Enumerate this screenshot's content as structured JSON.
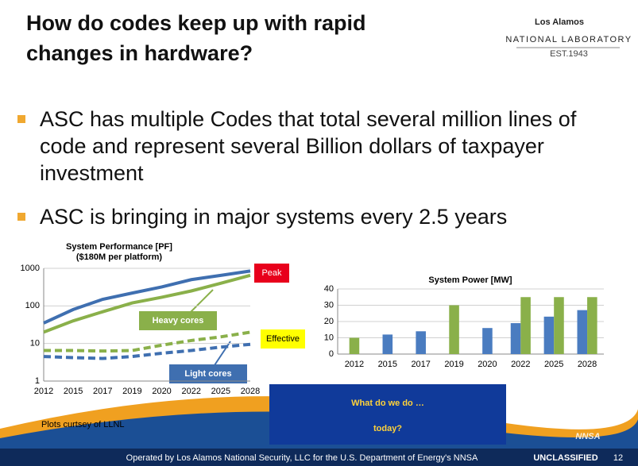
{
  "header": {
    "title": [
      "How do codes keep up with rapid",
      "changes in hardware?"
    ],
    "logo": {
      "name": "Los Alamos",
      "sub": "NATIONAL LABORATORY",
      "est": "EST.1943"
    }
  },
  "bullets": [
    "ASC has multiple Codes that total several million lines of code and represent several Billion dollars of taxpayer investment",
    "ASC is bringing in major systems every 2.5 years"
  ],
  "credit": "Plots curtsey of LLNL",
  "callout": [
    "What do we do …",
    "today?"
  ],
  "footer": {
    "operator": "Operated by Los Alamos National Security, LLC for the U.S. Department of Energy's NNSA",
    "agency": "NNSA",
    "classification": "UNCLASSIFIED",
    "page": "12"
  },
  "chart_data": [
    {
      "type": "line",
      "title": "System Performance [PF]",
      "subtitle": "($180M per platform)",
      "categories": [
        "2012",
        "2015",
        "2017",
        "2019",
        "2020",
        "2022",
        "2025",
        "2028"
      ],
      "ylog": true,
      "ylim": [
        1,
        1000
      ],
      "yticks": [
        1,
        10,
        100,
        1000
      ],
      "grid": true,
      "series": [
        {
          "color": "#3f6fb0",
          "dash": false,
          "values": [
            35,
            80,
            150,
            220,
            320,
            500,
            650,
            850
          ]
        },
        {
          "color": "#8ab04a",
          "dash": false,
          "values": [
            20,
            40,
            70,
            120,
            170,
            250,
            400,
            650
          ]
        },
        {
          "color": "#8ab04a",
          "dash": true,
          "values": [
            6.5,
            6.5,
            6.3,
            6.5,
            9,
            12,
            15,
            20
          ]
        },
        {
          "color": "#3f6fb0",
          "dash": true,
          "values": [
            4.5,
            4.2,
            4,
            4.5,
            5.5,
            6.5,
            8,
            9.5
          ]
        }
      ],
      "annotations": [
        "Peak",
        "Effective",
        "Heavy cores",
        "Light cores"
      ]
    },
    {
      "type": "bar",
      "title": "System Power [MW]",
      "categories": [
        "2012",
        "2015",
        "2017",
        "2019",
        "2020",
        "2022",
        "2025",
        "2028"
      ],
      "ylim": [
        0,
        40
      ],
      "yticks": [
        0,
        10,
        20,
        30,
        40
      ],
      "grid": true,
      "series": [
        {
          "color": "#4a7cc0",
          "values": [
            null,
            12,
            14,
            null,
            16,
            19,
            23,
            27
          ]
        },
        {
          "color": "#8ab04a",
          "values": [
            10,
            null,
            null,
            30,
            null,
            35,
            35,
            35
          ]
        }
      ]
    }
  ]
}
